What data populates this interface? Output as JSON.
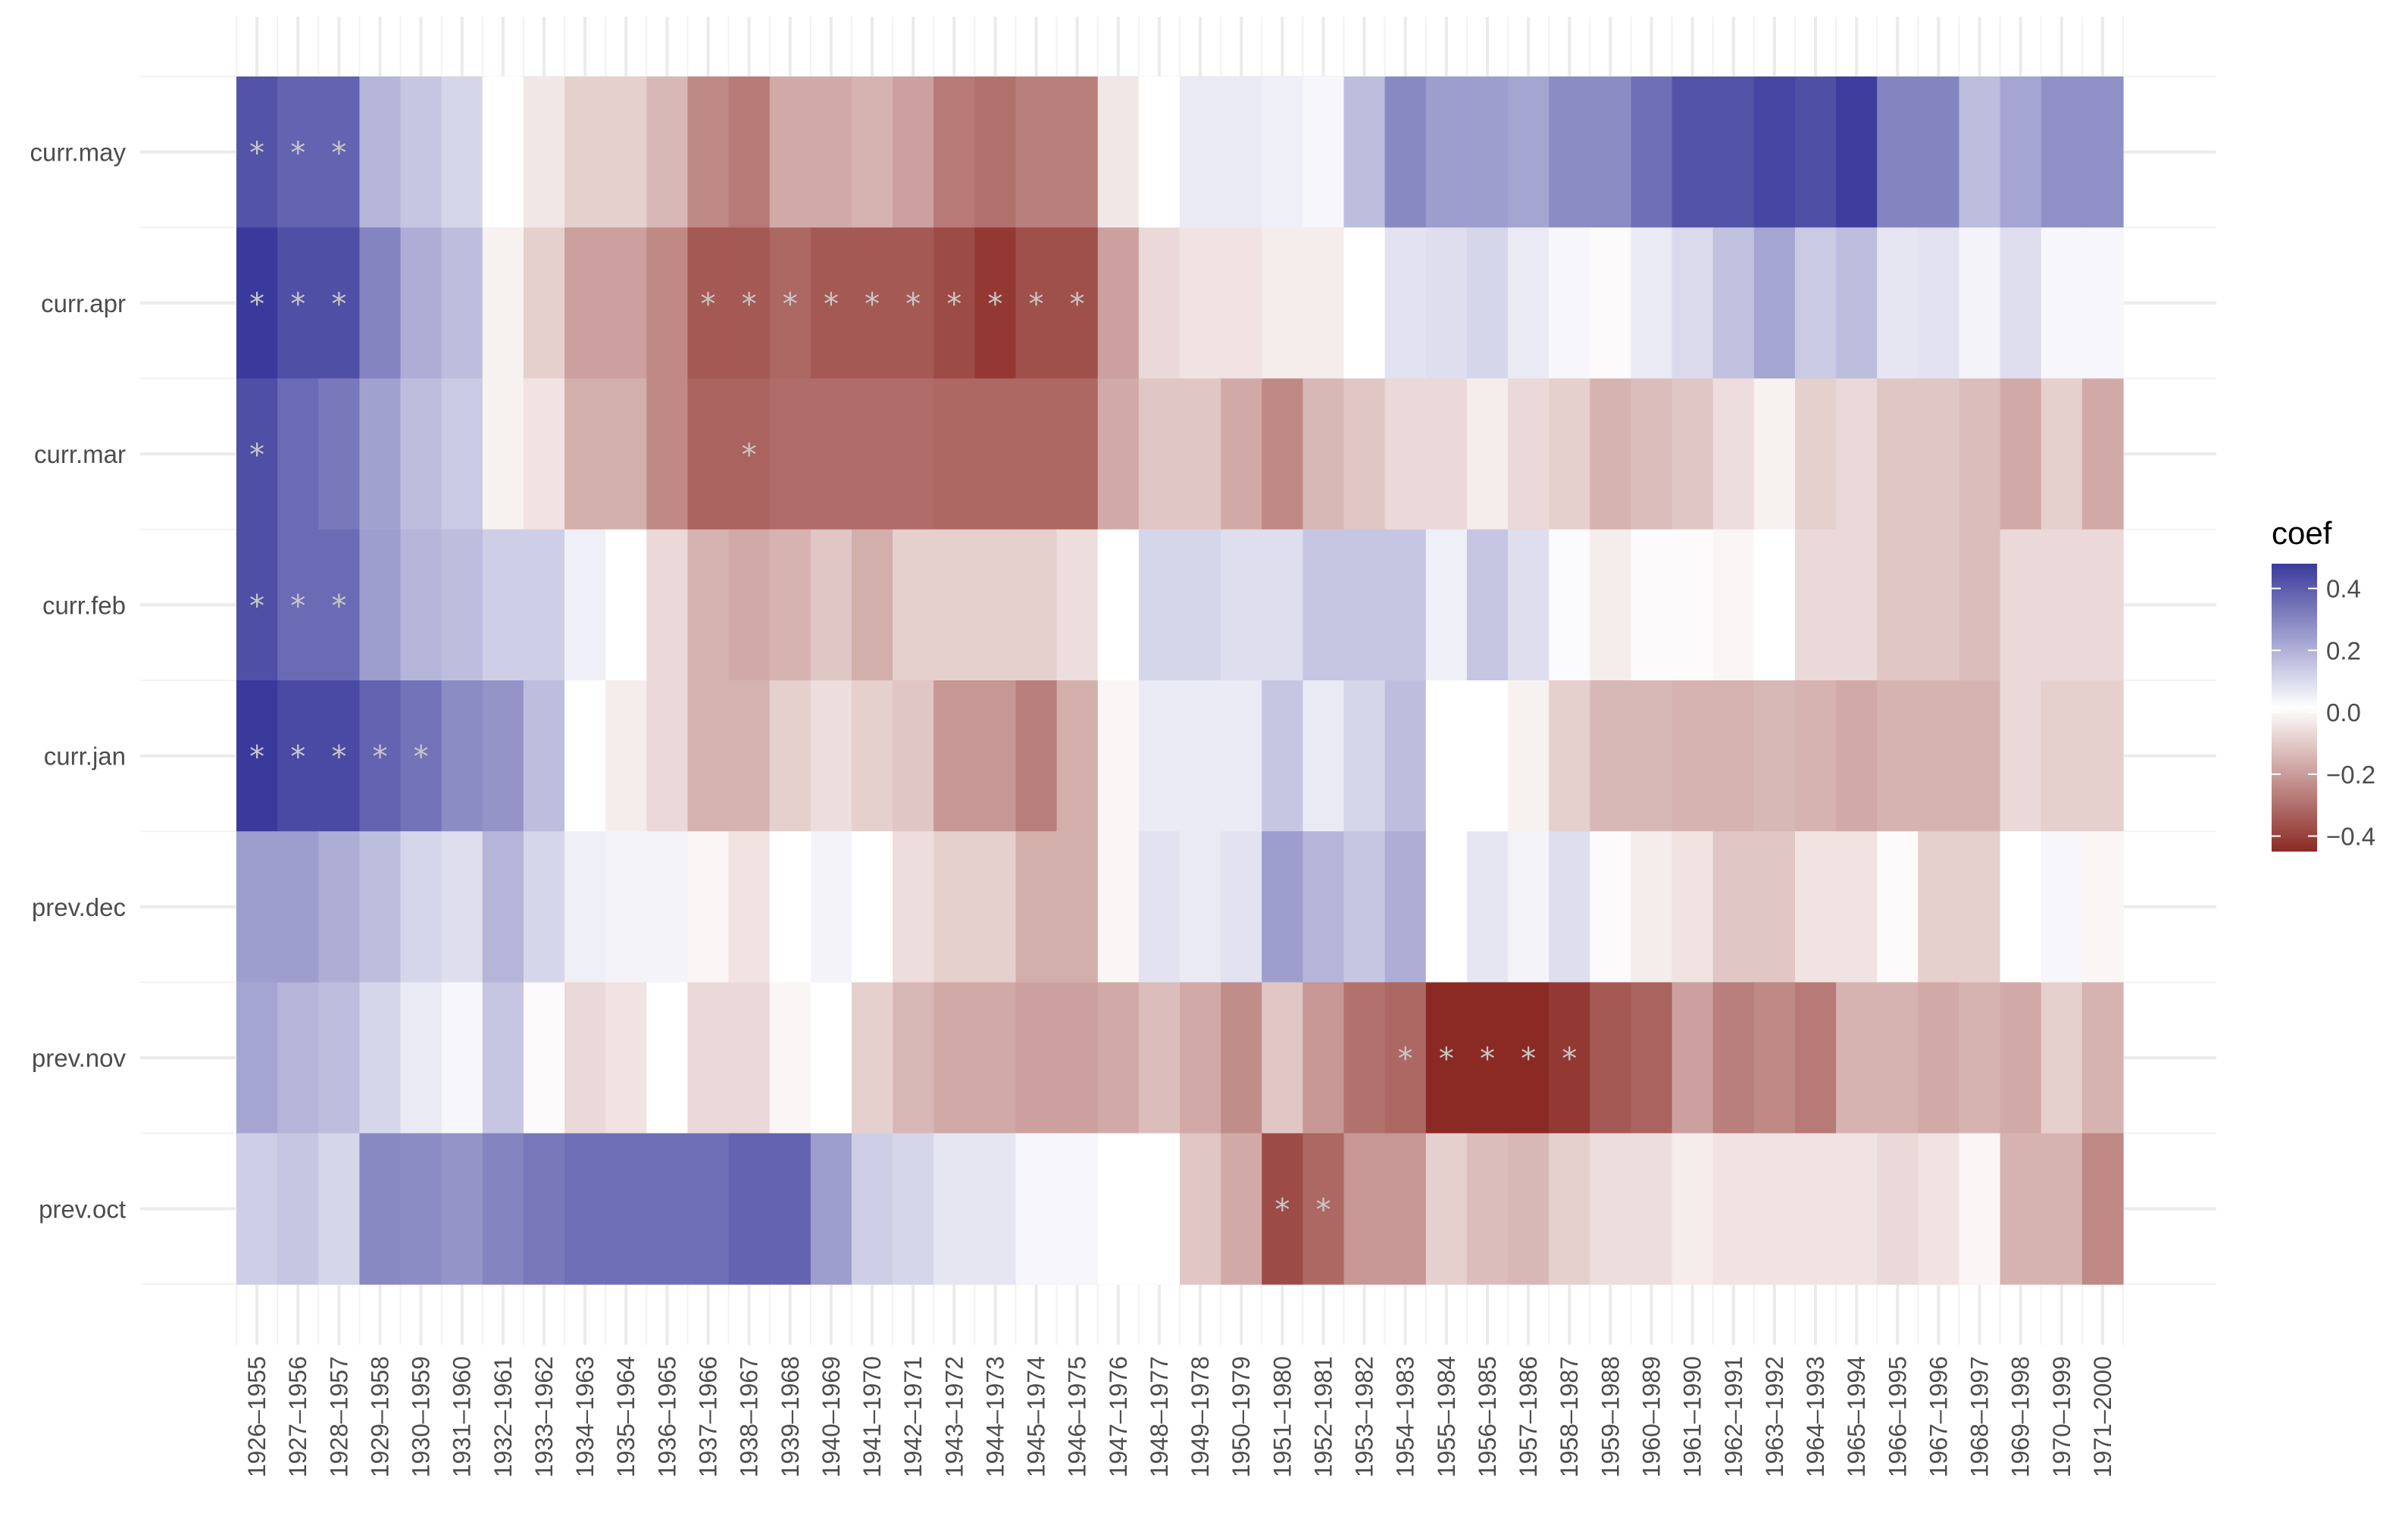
{
  "chart_data": {
    "type": "heatmap",
    "title": "",
    "xlabel": "",
    "ylabel": "",
    "x_categories": [
      "1926–1955",
      "1927–1956",
      "1928–1957",
      "1929–1958",
      "1930–1959",
      "1931–1960",
      "1932–1961",
      "1933–1962",
      "1934–1963",
      "1935–1964",
      "1936–1965",
      "1937–1966",
      "1938–1967",
      "1939–1968",
      "1940–1969",
      "1941–1970",
      "1942–1971",
      "1943–1972",
      "1944–1973",
      "1945–1974",
      "1946–1975",
      "1947–1976",
      "1948–1977",
      "1949–1978",
      "1950–1979",
      "1951–1980",
      "1952–1981",
      "1953–1982",
      "1954–1983",
      "1955–1984",
      "1956–1985",
      "1957–1986",
      "1958–1987",
      "1959–1988",
      "1960–1989",
      "1961–1990",
      "1962–1991",
      "1963–1992",
      "1964–1993",
      "1965–1994",
      "1966–1995",
      "1967–1996",
      "1968–1997",
      "1969–1998",
      "1970–1999",
      "1971–2000"
    ],
    "y_categories": [
      "curr.may",
      "curr.apr",
      "curr.mar",
      "curr.feb",
      "curr.jan",
      "prev.dec",
      "prev.nov",
      "prev.oct"
    ],
    "values": [
      [
        0.42,
        0.38,
        0.38,
        0.18,
        0.14,
        0.1,
        0.0,
        -0.05,
        -0.1,
        -0.1,
        -0.15,
        -0.25,
        -0.28,
        -0.18,
        -0.18,
        -0.16,
        -0.2,
        -0.28,
        -0.3,
        -0.27,
        -0.27,
        -0.05,
        0.0,
        0.05,
        0.05,
        0.04,
        0.02,
        0.16,
        0.29,
        0.24,
        0.24,
        0.22,
        0.28,
        0.28,
        0.35,
        0.42,
        0.42,
        0.45,
        0.43,
        0.47,
        0.3,
        0.3,
        0.16,
        0.22,
        0.27,
        0.27
      ],
      [
        0.48,
        0.43,
        0.43,
        0.3,
        0.2,
        0.16,
        -0.03,
        -0.1,
        -0.2,
        -0.2,
        -0.25,
        -0.35,
        -0.35,
        -0.32,
        -0.35,
        -0.35,
        -0.35,
        -0.38,
        -0.42,
        -0.37,
        -0.37,
        -0.2,
        -0.08,
        -0.06,
        -0.06,
        -0.04,
        -0.04,
        0.0,
        0.07,
        0.08,
        0.1,
        0.05,
        0.02,
        -0.01,
        0.05,
        0.09,
        0.15,
        0.22,
        0.13,
        0.16,
        0.06,
        0.07,
        0.03,
        0.08,
        0.02,
        0.02
      ],
      [
        0.43,
        0.36,
        0.33,
        0.23,
        0.16,
        0.13,
        -0.03,
        -0.06,
        -0.17,
        -0.17,
        -0.25,
        -0.33,
        -0.33,
        -0.31,
        -0.31,
        -0.31,
        -0.31,
        -0.32,
        -0.32,
        -0.32,
        -0.32,
        -0.18,
        -0.12,
        -0.12,
        -0.18,
        -0.25,
        -0.15,
        -0.12,
        -0.08,
        -0.08,
        -0.04,
        -0.08,
        -0.1,
        -0.16,
        -0.14,
        -0.12,
        -0.07,
        -0.03,
        -0.1,
        -0.08,
        -0.12,
        -0.12,
        -0.14,
        -0.18,
        -0.1,
        -0.18
      ],
      [
        0.43,
        0.36,
        0.36,
        0.24,
        0.18,
        0.16,
        0.12,
        0.12,
        0.04,
        0.0,
        -0.08,
        -0.16,
        -0.18,
        -0.16,
        -0.12,
        -0.17,
        -0.1,
        -0.1,
        -0.1,
        -0.1,
        -0.07,
        0.0,
        0.1,
        0.1,
        0.08,
        0.08,
        0.14,
        0.14,
        0.14,
        0.04,
        0.14,
        0.08,
        0.01,
        -0.04,
        -0.01,
        -0.01,
        -0.02,
        0.0,
        -0.08,
        -0.08,
        -0.12,
        -0.12,
        -0.14,
        -0.08,
        -0.08,
        -0.08
      ],
      [
        0.48,
        0.44,
        0.44,
        0.38,
        0.34,
        0.28,
        0.26,
        0.16,
        0.0,
        -0.04,
        -0.08,
        -0.16,
        -0.16,
        -0.1,
        -0.07,
        -0.1,
        -0.12,
        -0.22,
        -0.22,
        -0.27,
        -0.17,
        -0.02,
        0.05,
        0.05,
        0.05,
        0.14,
        0.05,
        0.1,
        0.16,
        0.0,
        0.0,
        -0.03,
        -0.1,
        -0.15,
        -0.15,
        -0.16,
        -0.16,
        -0.15,
        -0.16,
        -0.18,
        -0.16,
        -0.16,
        -0.16,
        -0.08,
        -0.1,
        -0.1
      ],
      [
        0.24,
        0.24,
        0.2,
        0.16,
        0.1,
        0.08,
        0.18,
        0.1,
        0.04,
        0.03,
        0.03,
        -0.02,
        -0.06,
        0.0,
        0.03,
        0.0,
        -0.07,
        -0.1,
        -0.1,
        -0.17,
        -0.17,
        -0.02,
        0.07,
        0.05,
        0.07,
        0.24,
        0.18,
        0.14,
        0.2,
        0.0,
        0.06,
        0.03,
        0.08,
        -0.01,
        -0.04,
        -0.06,
        -0.12,
        -0.12,
        -0.06,
        -0.06,
        -0.01,
        -0.1,
        -0.1,
        0.0,
        0.02,
        -0.02
      ],
      [
        0.22,
        0.18,
        0.16,
        0.1,
        0.05,
        0.02,
        0.14,
        -0.01,
        -0.08,
        -0.06,
        0.0,
        -0.08,
        -0.08,
        -0.02,
        0.0,
        -0.1,
        -0.15,
        -0.18,
        -0.18,
        -0.2,
        -0.2,
        -0.18,
        -0.14,
        -0.18,
        -0.24,
        -0.12,
        -0.22,
        -0.3,
        -0.32,
        -0.46,
        -0.46,
        -0.47,
        -0.42,
        -0.35,
        -0.33,
        -0.2,
        -0.27,
        -0.25,
        -0.28,
        -0.16,
        -0.16,
        -0.18,
        -0.16,
        -0.18,
        -0.1,
        -0.16
      ],
      [
        0.12,
        0.14,
        0.1,
        0.29,
        0.28,
        0.26,
        0.3,
        0.33,
        0.35,
        0.35,
        0.35,
        0.35,
        0.38,
        0.38,
        0.24,
        0.12,
        0.1,
        0.06,
        0.06,
        0.02,
        0.02,
        0.0,
        0.0,
        -0.12,
        -0.18,
        -0.38,
        -0.32,
        -0.22,
        -0.22,
        -0.1,
        -0.14,
        -0.15,
        -0.1,
        -0.07,
        -0.07,
        -0.04,
        -0.06,
        -0.06,
        -0.06,
        -0.06,
        -0.08,
        -0.06,
        -0.02,
        -0.16,
        -0.16,
        -0.25
      ]
    ],
    "significance_marker": "*",
    "significant": [
      [
        0,
        0
      ],
      [
        0,
        1
      ],
      [
        0,
        2
      ],
      [
        1,
        0
      ],
      [
        1,
        1
      ],
      [
        1,
        2
      ],
      [
        1,
        11
      ],
      [
        1,
        12
      ],
      [
        1,
        13
      ],
      [
        1,
        14
      ],
      [
        1,
        15
      ],
      [
        1,
        16
      ],
      [
        1,
        17
      ],
      [
        1,
        18
      ],
      [
        1,
        19
      ],
      [
        1,
        20
      ],
      [
        2,
        0
      ],
      [
        2,
        12
      ],
      [
        3,
        0
      ],
      [
        3,
        1
      ],
      [
        3,
        2
      ],
      [
        4,
        0
      ],
      [
        4,
        1
      ],
      [
        4,
        2
      ],
      [
        4,
        3
      ],
      [
        4,
        4
      ],
      [
        6,
        28
      ],
      [
        6,
        29
      ],
      [
        6,
        30
      ],
      [
        6,
        31
      ],
      [
        6,
        32
      ],
      [
        7,
        25
      ],
      [
        7,
        26
      ]
    ],
    "legend": {
      "title": "coef",
      "ticks": [
        0.4,
        0.2,
        0.0,
        -0.2,
        -0.4
      ],
      "tick_labels": [
        "0.4",
        "0.2",
        "0.0",
        "−0.2",
        "−0.4"
      ],
      "range": [
        -0.45,
        0.48
      ],
      "high_color": "#3a3a9c",
      "mid_color": "#ffffff",
      "low_color": "#8b2a24",
      "placement": "right"
    },
    "grid": true
  }
}
